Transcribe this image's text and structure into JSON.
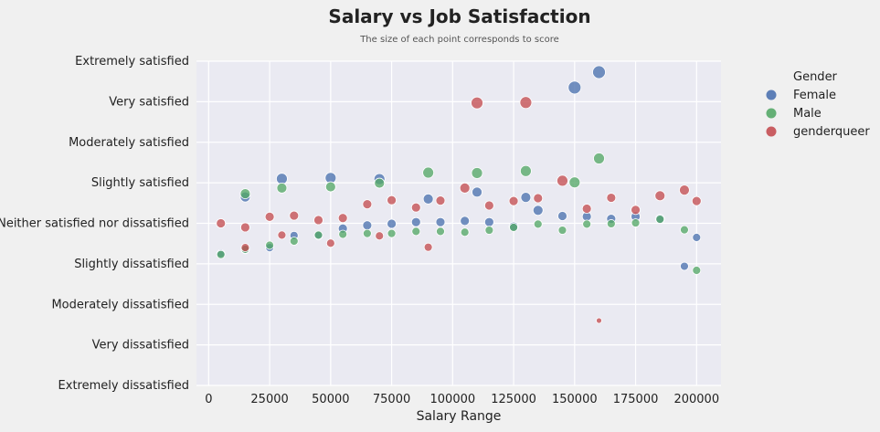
{
  "chart_data": {
    "type": "scatter",
    "title": "Salary vs Job Satisfaction",
    "subtitle": "The size of each point corresponds to score",
    "xlabel": "Salary Range",
    "ylabel": "",
    "xlim": [
      -5000,
      210000
    ],
    "x_ticks": [
      0,
      25000,
      50000,
      75000,
      100000,
      125000,
      150000,
      175000,
      200000
    ],
    "y_categories": [
      "Extremely dissatisfied",
      "Very dissatisfied",
      "Moderately dissatisfied",
      "Slightly dissatisfied",
      "Neither satisfied nor dissatisfied",
      "Slightly satisfied",
      "Moderately satisfied",
      "Very satisfied",
      "Extremely satisfied"
    ],
    "grid": true,
    "legend_title": "Gender",
    "legend_position": "right",
    "series": [
      {
        "name": "Female",
        "color": "#4c72b0",
        "points": [
          {
            "x": 5000,
            "y": 3.25,
            "s": 7
          },
          {
            "x": 15000,
            "y": 3.35,
            "s": 7
          },
          {
            "x": 15000,
            "y": 4.65,
            "s": 9
          },
          {
            "x": 25000,
            "y": 3.4,
            "s": 7
          },
          {
            "x": 30000,
            "y": 5.1,
            "s": 10
          },
          {
            "x": 35000,
            "y": 3.7,
            "s": 7
          },
          {
            "x": 45000,
            "y": 3.7,
            "s": 7
          },
          {
            "x": 50000,
            "y": 5.12,
            "s": 10
          },
          {
            "x": 55000,
            "y": 3.87,
            "s": 8
          },
          {
            "x": 65000,
            "y": 3.95,
            "s": 8
          },
          {
            "x": 70000,
            "y": 5.09,
            "s": 10
          },
          {
            "x": 75000,
            "y": 3.99,
            "s": 8
          },
          {
            "x": 85000,
            "y": 4.03,
            "s": 8
          },
          {
            "x": 90000,
            "y": 4.6,
            "s": 9
          },
          {
            "x": 95000,
            "y": 4.03,
            "s": 8
          },
          {
            "x": 105000,
            "y": 4.06,
            "s": 8
          },
          {
            "x": 110000,
            "y": 4.77,
            "s": 9
          },
          {
            "x": 115000,
            "y": 4.03,
            "s": 8
          },
          {
            "x": 125000,
            "y": 3.92,
            "s": 8
          },
          {
            "x": 130000,
            "y": 4.64,
            "s": 9
          },
          {
            "x": 135000,
            "y": 4.32,
            "s": 9
          },
          {
            "x": 145000,
            "y": 4.18,
            "s": 8
          },
          {
            "x": 150000,
            "y": 7.35,
            "s": 12
          },
          {
            "x": 155000,
            "y": 4.17,
            "s": 8
          },
          {
            "x": 160000,
            "y": 7.73,
            "s": 12
          },
          {
            "x": 165000,
            "y": 4.11,
            "s": 8
          },
          {
            "x": 175000,
            "y": 4.17,
            "s": 8
          },
          {
            "x": 185000,
            "y": 4.11,
            "s": 8
          },
          {
            "x": 195000,
            "y": 2.94,
            "s": 7
          },
          {
            "x": 200000,
            "y": 3.65,
            "s": 7
          }
        ]
      },
      {
        "name": "Male",
        "color": "#55a868",
        "points": [
          {
            "x": 5000,
            "y": 3.23,
            "s": 7
          },
          {
            "x": 15000,
            "y": 3.36,
            "s": 7
          },
          {
            "x": 15000,
            "y": 4.73,
            "s": 9
          },
          {
            "x": 25000,
            "y": 3.46,
            "s": 7
          },
          {
            "x": 30000,
            "y": 4.87,
            "s": 9
          },
          {
            "x": 35000,
            "y": 3.56,
            "s": 7
          },
          {
            "x": 45000,
            "y": 3.71,
            "s": 7
          },
          {
            "x": 50000,
            "y": 4.9,
            "s": 9
          },
          {
            "x": 55000,
            "y": 3.73,
            "s": 7
          },
          {
            "x": 65000,
            "y": 3.75,
            "s": 7
          },
          {
            "x": 70000,
            "y": 4.99,
            "s": 9
          },
          {
            "x": 75000,
            "y": 3.75,
            "s": 7
          },
          {
            "x": 85000,
            "y": 3.8,
            "s": 7
          },
          {
            "x": 90000,
            "y": 5.25,
            "s": 10
          },
          {
            "x": 95000,
            "y": 3.8,
            "s": 7
          },
          {
            "x": 105000,
            "y": 3.78,
            "s": 7
          },
          {
            "x": 110000,
            "y": 5.24,
            "s": 10
          },
          {
            "x": 115000,
            "y": 3.83,
            "s": 7
          },
          {
            "x": 125000,
            "y": 3.9,
            "s": 7
          },
          {
            "x": 130000,
            "y": 5.29,
            "s": 10
          },
          {
            "x": 135000,
            "y": 3.98,
            "s": 7
          },
          {
            "x": 145000,
            "y": 3.83,
            "s": 7
          },
          {
            "x": 150000,
            "y": 5.01,
            "s": 10
          },
          {
            "x": 155000,
            "y": 3.98,
            "s": 7
          },
          {
            "x": 160000,
            "y": 5.6,
            "s": 10
          },
          {
            "x": 165000,
            "y": 3.99,
            "s": 7
          },
          {
            "x": 175000,
            "y": 4.01,
            "s": 7
          },
          {
            "x": 185000,
            "y": 4.1,
            "s": 7
          },
          {
            "x": 195000,
            "y": 3.84,
            "s": 7
          },
          {
            "x": 200000,
            "y": 2.84,
            "s": 7
          }
        ]
      },
      {
        "name": "genderqueer",
        "color": "#c44e52",
        "points": [
          {
            "x": 5000,
            "y": 4.0,
            "s": 8
          },
          {
            "x": 15000,
            "y": 3.9,
            "s": 8
          },
          {
            "x": 15000,
            "y": 3.4,
            "s": 7
          },
          {
            "x": 25000,
            "y": 4.16,
            "s": 8
          },
          {
            "x": 30000,
            "y": 3.71,
            "s": 7
          },
          {
            "x": 35000,
            "y": 4.19,
            "s": 8
          },
          {
            "x": 45000,
            "y": 4.08,
            "s": 8
          },
          {
            "x": 50000,
            "y": 3.51,
            "s": 7
          },
          {
            "x": 55000,
            "y": 4.13,
            "s": 8
          },
          {
            "x": 65000,
            "y": 4.47,
            "s": 8
          },
          {
            "x": 70000,
            "y": 3.69,
            "s": 7
          },
          {
            "x": 75000,
            "y": 4.57,
            "s": 8
          },
          {
            "x": 85000,
            "y": 4.39,
            "s": 8
          },
          {
            "x": 90000,
            "y": 3.41,
            "s": 7
          },
          {
            "x": 95000,
            "y": 4.56,
            "s": 8
          },
          {
            "x": 105000,
            "y": 4.87,
            "s": 9
          },
          {
            "x": 110000,
            "y": 6.97,
            "s": 11
          },
          {
            "x": 115000,
            "y": 4.44,
            "s": 8
          },
          {
            "x": 125000,
            "y": 4.55,
            "s": 8
          },
          {
            "x": 130000,
            "y": 6.98,
            "s": 11
          },
          {
            "x": 135000,
            "y": 4.62,
            "s": 8
          },
          {
            "x": 145000,
            "y": 5.05,
            "s": 10
          },
          {
            "x": 155000,
            "y": 4.36,
            "s": 8
          },
          {
            "x": 160000,
            "y": 1.6,
            "s": 4
          },
          {
            "x": 165000,
            "y": 4.63,
            "s": 8
          },
          {
            "x": 175000,
            "y": 4.33,
            "s": 8
          },
          {
            "x": 185000,
            "y": 4.68,
            "s": 9
          },
          {
            "x": 195000,
            "y": 4.82,
            "s": 9
          },
          {
            "x": 200000,
            "y": 4.55,
            "s": 8
          }
        ]
      }
    ]
  }
}
